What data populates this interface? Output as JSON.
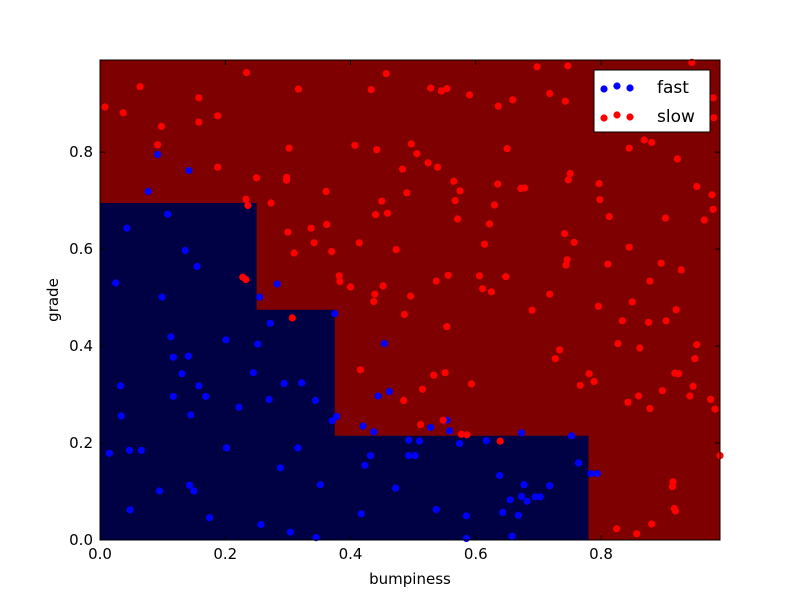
{
  "chart_data": {
    "type": "scatter",
    "xlabel": "bumpiness",
    "ylabel": "grade",
    "xlim": [
      0,
      0.99
    ],
    "ylim": [
      0,
      0.99
    ],
    "x_ticks": [
      0.0,
      0.2,
      0.4,
      0.6,
      0.8
    ],
    "y_ticks": [
      0.0,
      0.2,
      0.4,
      0.6,
      0.8
    ],
    "x_tick_labels": [
      "0.0",
      "0.2",
      "0.4",
      "0.6",
      "0.8"
    ],
    "y_tick_labels": [
      "0.0",
      "0.2",
      "0.4",
      "0.6",
      "0.8"
    ],
    "grid": false,
    "legend_position": "top-right",
    "background_regions": [
      {
        "class": "slow",
        "color": "#7f0000",
        "polygon": [
          [
            0,
            0
          ],
          [
            0.99,
            0
          ],
          [
            0.99,
            0.99
          ],
          [
            0,
            0.99
          ]
        ]
      },
      {
        "class": "fast",
        "color": "#000044",
        "polygon": [
          [
            0,
            0
          ],
          [
            0.78,
            0
          ],
          [
            0.78,
            0.215
          ],
          [
            0.375,
            0.215
          ],
          [
            0.375,
            0.475
          ],
          [
            0.25,
            0.475
          ],
          [
            0.25,
            0.695
          ],
          [
            0,
            0.695
          ]
        ]
      }
    ],
    "series": [
      {
        "name": "fast",
        "color": "#0000ff",
        "points": [
          [
            0.092,
            0.795
          ],
          [
            0.142,
            0.762
          ],
          [
            0.077,
            0.719
          ],
          [
            0.043,
            0.643
          ],
          [
            0.108,
            0.672
          ],
          [
            0.136,
            0.597
          ],
          [
            0.155,
            0.564
          ],
          [
            0.025,
            0.53
          ],
          [
            0.099,
            0.501
          ],
          [
            0.283,
            0.528
          ],
          [
            0.255,
            0.501
          ],
          [
            0.375,
            0.467
          ],
          [
            0.272,
            0.447
          ],
          [
            0.113,
            0.419
          ],
          [
            0.201,
            0.413
          ],
          [
            0.252,
            0.404
          ],
          [
            0.454,
            0.405
          ],
          [
            0.117,
            0.377
          ],
          [
            0.141,
            0.379
          ],
          [
            0.131,
            0.343
          ],
          [
            0.245,
            0.345
          ],
          [
            0.033,
            0.318
          ],
          [
            0.158,
            0.318
          ],
          [
            0.294,
            0.323
          ],
          [
            0.322,
            0.324
          ],
          [
            0.117,
            0.296
          ],
          [
            0.169,
            0.296
          ],
          [
            0.27,
            0.29
          ],
          [
            0.344,
            0.288
          ],
          [
            0.444,
            0.297
          ],
          [
            0.462,
            0.306
          ],
          [
            0.222,
            0.274
          ],
          [
            0.034,
            0.256
          ],
          [
            0.145,
            0.258
          ],
          [
            0.378,
            0.255
          ],
          [
            0.371,
            0.246
          ],
          [
            0.42,
            0.235
          ],
          [
            0.554,
            0.247
          ],
          [
            0.528,
            0.232
          ],
          [
            0.437,
            0.223
          ],
          [
            0.558,
            0.225
          ],
          [
            0.574,
            0.199
          ],
          [
            0.493,
            0.206
          ],
          [
            0.51,
            0.204
          ],
          [
            0.617,
            0.205
          ],
          [
            0.673,
            0.221
          ],
          [
            0.753,
            0.215
          ],
          [
            0.202,
            0.19
          ],
          [
            0.316,
            0.19
          ],
          [
            0.066,
            0.185
          ],
          [
            0.047,
            0.185
          ],
          [
            0.015,
            0.179
          ],
          [
            0.432,
            0.174
          ],
          [
            0.493,
            0.174
          ],
          [
            0.503,
            0.174
          ],
          [
            0.764,
            0.159
          ],
          [
            0.423,
            0.154
          ],
          [
            0.288,
            0.149
          ],
          [
            0.638,
            0.133
          ],
          [
            0.784,
            0.137
          ],
          [
            0.794,
            0.137
          ],
          [
            0.143,
            0.113
          ],
          [
            0.352,
            0.114
          ],
          [
            0.472,
            0.107
          ],
          [
            0.15,
            0.101
          ],
          [
            0.095,
            0.101
          ],
          [
            0.677,
            0.114
          ],
          [
            0.718,
            0.112
          ],
          [
            0.673,
            0.09
          ],
          [
            0.655,
            0.083
          ],
          [
            0.695,
            0.089
          ],
          [
            0.703,
            0.089
          ],
          [
            0.682,
            0.08
          ],
          [
            0.048,
            0.062
          ],
          [
            0.537,
            0.063
          ],
          [
            0.417,
            0.054
          ],
          [
            0.643,
            0.057
          ],
          [
            0.668,
            0.051
          ],
          [
            0.585,
            0.05
          ],
          [
            0.175,
            0.046
          ],
          [
            0.257,
            0.032
          ],
          [
            0.304,
            0.016
          ],
          [
            0.345,
            0.005
          ],
          [
            0.585,
            0.003
          ],
          [
            0.658,
            0.008
          ]
        ]
      },
      {
        "name": "slow",
        "color": "#ff0000",
        "points": [
          [
            0.008,
            0.893
          ],
          [
            0.037,
            0.881
          ],
          [
            0.064,
            0.935
          ],
          [
            0.234,
            0.964
          ],
          [
            0.317,
            0.93
          ],
          [
            0.433,
            0.929
          ],
          [
            0.457,
            0.962
          ],
          [
            0.528,
            0.932
          ],
          [
            0.545,
            0.926
          ],
          [
            0.554,
            0.931
          ],
          [
            0.59,
            0.918
          ],
          [
            0.636,
            0.895
          ],
          [
            0.659,
            0.908
          ],
          [
            0.698,
            0.976
          ],
          [
            0.718,
            0.921
          ],
          [
            0.743,
            0.905
          ],
          [
            0.747,
            0.978
          ],
          [
            0.945,
            0.985
          ],
          [
            0.979,
            0.912
          ],
          [
            0.98,
            0.871
          ],
          [
            0.098,
            0.853
          ],
          [
            0.158,
            0.862
          ],
          [
            0.158,
            0.912
          ],
          [
            0.188,
            0.875
          ],
          [
            0.092,
            0.815
          ],
          [
            0.302,
            0.808
          ],
          [
            0.407,
            0.814
          ],
          [
            0.442,
            0.805
          ],
          [
            0.497,
            0.817
          ],
          [
            0.506,
            0.797
          ],
          [
            0.524,
            0.778
          ],
          [
            0.483,
            0.765
          ],
          [
            0.539,
            0.769
          ],
          [
            0.65,
            0.807
          ],
          [
            0.565,
            0.74
          ],
          [
            0.298,
            0.748
          ],
          [
            0.298,
            0.742
          ],
          [
            0.25,
            0.747
          ],
          [
            0.188,
            0.769
          ],
          [
            0.361,
            0.719
          ],
          [
            0.49,
            0.716
          ],
          [
            0.575,
            0.72
          ],
          [
            0.635,
            0.734
          ],
          [
            0.672,
            0.725
          ],
          [
            0.678,
            0.726
          ],
          [
            0.748,
            0.743
          ],
          [
            0.751,
            0.756
          ],
          [
            0.797,
            0.735
          ],
          [
            0.845,
            0.808
          ],
          [
            0.869,
            0.825
          ],
          [
            0.881,
            0.82
          ],
          [
            0.922,
            0.786
          ],
          [
            0.953,
            0.729
          ],
          [
            0.977,
            0.712
          ],
          [
            0.233,
            0.703
          ],
          [
            0.273,
            0.695
          ],
          [
            0.236,
            0.69
          ],
          [
            0.45,
            0.699
          ],
          [
            0.567,
            0.7
          ],
          [
            0.63,
            0.691
          ],
          [
            0.44,
            0.671
          ],
          [
            0.459,
            0.674
          ],
          [
            0.571,
            0.662
          ],
          [
            0.622,
            0.652
          ],
          [
            0.798,
            0.702
          ],
          [
            0.813,
            0.667
          ],
          [
            0.903,
            0.664
          ],
          [
            0.965,
            0.66
          ],
          [
            0.979,
            0.682
          ],
          [
            0.337,
            0.643
          ],
          [
            0.362,
            0.651
          ],
          [
            0.3,
            0.635
          ],
          [
            0.342,
            0.613
          ],
          [
            0.414,
            0.613
          ],
          [
            0.742,
            0.632
          ],
          [
            0.757,
            0.614
          ],
          [
            0.845,
            0.604
          ],
          [
            0.31,
            0.592
          ],
          [
            0.37,
            0.595
          ],
          [
            0.473,
            0.599
          ],
          [
            0.614,
            0.61
          ],
          [
            0.746,
            0.578
          ],
          [
            0.744,
            0.567
          ],
          [
            0.811,
            0.569
          ],
          [
            0.896,
            0.571
          ],
          [
            0.928,
            0.557
          ],
          [
            0.228,
            0.542
          ],
          [
            0.233,
            0.537
          ],
          [
            0.382,
            0.545
          ],
          [
            0.383,
            0.533
          ],
          [
            0.452,
            0.524
          ],
          [
            0.537,
            0.534
          ],
          [
            0.556,
            0.546
          ],
          [
            0.606,
            0.545
          ],
          [
            0.648,
            0.543
          ],
          [
            0.4,
            0.522
          ],
          [
            0.439,
            0.507
          ],
          [
            0.496,
            0.503
          ],
          [
            0.611,
            0.518
          ],
          [
            0.625,
            0.512
          ],
          [
            0.718,
            0.507
          ],
          [
            0.878,
            0.534
          ],
          [
            0.437,
            0.492
          ],
          [
            0.486,
            0.465
          ],
          [
            0.307,
            0.458
          ],
          [
            0.69,
            0.474
          ],
          [
            0.796,
            0.482
          ],
          [
            0.85,
            0.491
          ],
          [
            0.92,
            0.475
          ],
          [
            0.554,
            0.44
          ],
          [
            0.834,
            0.452
          ],
          [
            0.876,
            0.449
          ],
          [
            0.904,
            0.452
          ],
          [
            0.827,
            0.405
          ],
          [
            0.862,
            0.396
          ],
          [
            0.953,
            0.403
          ],
          [
            0.734,
            0.392
          ],
          [
            0.727,
            0.374
          ],
          [
            0.781,
            0.343
          ],
          [
            0.918,
            0.344
          ],
          [
            0.95,
            0.374
          ],
          [
            0.551,
            0.345
          ],
          [
            0.533,
            0.34
          ],
          [
            0.416,
            0.351
          ],
          [
            0.485,
            0.288
          ],
          [
            0.515,
            0.311
          ],
          [
            0.593,
            0.322
          ],
          [
            0.767,
            0.319
          ],
          [
            0.789,
            0.327
          ],
          [
            0.86,
            0.297
          ],
          [
            0.898,
            0.308
          ],
          [
            0.947,
            0.317
          ],
          [
            0.975,
            0.29
          ],
          [
            0.982,
            0.27
          ],
          [
            0.843,
            0.284
          ],
          [
            0.942,
            0.297
          ],
          [
            0.924,
            0.343
          ],
          [
            0.512,
            0.238
          ],
          [
            0.548,
            0.247
          ],
          [
            0.577,
            0.218
          ],
          [
            0.586,
            0.217
          ],
          [
            0.639,
            0.204
          ],
          [
            0.878,
            0.271
          ],
          [
            0.99,
            0.174
          ],
          [
            0.914,
            0.11
          ],
          [
            0.915,
            0.12
          ],
          [
            0.917,
            0.065
          ],
          [
            0.919,
            0.06
          ],
          [
            0.881,
            0.033
          ],
          [
            0.857,
            0.013
          ],
          [
            0.825,
            0.023
          ]
        ]
      }
    ]
  },
  "legend": {
    "items": [
      {
        "label": "fast",
        "color": "#0000ff"
      },
      {
        "label": "slow",
        "color": "#ff0000"
      }
    ]
  }
}
